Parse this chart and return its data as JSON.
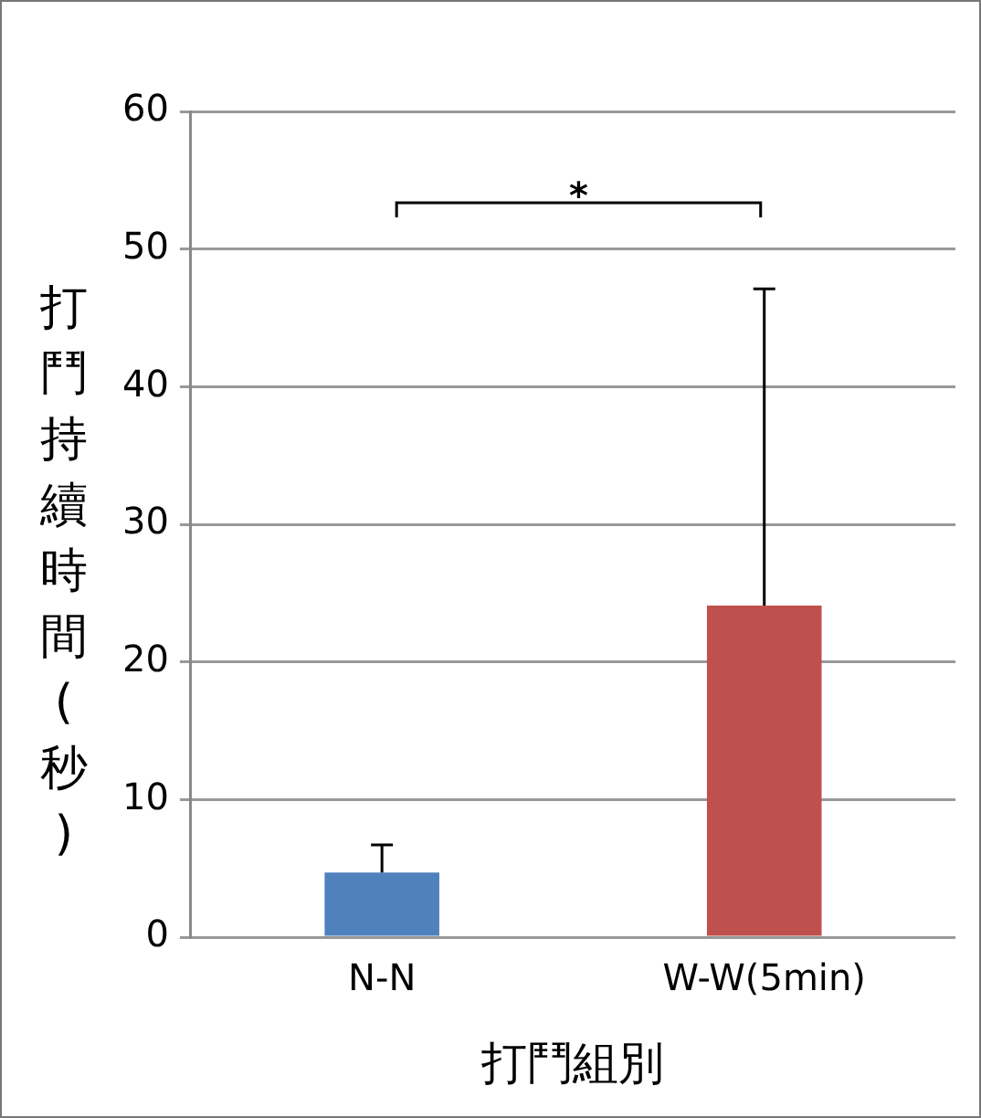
{
  "chart_data": {
    "type": "bar",
    "xlabel": "打鬥組別",
    "ylabel": "打鬥持續時間(秒)",
    "categories": [
      "N-N",
      "W-W(5min)"
    ],
    "values": [
      4.7,
      24.1
    ],
    "colors": [
      "#4f81bd",
      "#c0504d"
    ],
    "errors": [
      [
        4.7,
        6.7
      ],
      [
        24.1,
        47.1
      ]
    ],
    "ylim": [
      0,
      60
    ],
    "yticks": [
      0,
      10,
      20,
      30,
      40,
      50,
      60
    ],
    "grid": "y",
    "legend": false,
    "annotations": [
      "*"
    ]
  }
}
